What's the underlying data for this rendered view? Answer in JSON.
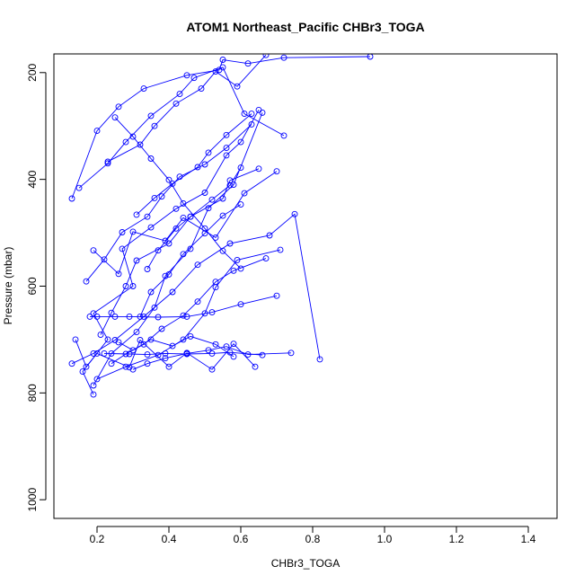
{
  "chart_data": {
    "type": "line",
    "title": "ATOM1 Northeast_Pacific CHBr3_TOGA",
    "xlabel": "CHBr3_TOGA",
    "ylabel": "Pressure (mbar)",
    "xlim": [
      0.08,
      1.48
    ],
    "ylim": [
      1035,
      165
    ],
    "y_reversed": true,
    "xticks": [
      0.2,
      0.4,
      0.6,
      0.8,
      1.0,
      1.2,
      1.4
    ],
    "xtick_labels": [
      "0.2",
      "0.4",
      "0.6",
      "0.8",
      "1.0",
      "1.2",
      "1.4"
    ],
    "yticks": [
      200,
      400,
      600,
      800,
      1000
    ],
    "ytick_labels": [
      "200",
      "400",
      "600",
      "800",
      "1000"
    ],
    "grid": false,
    "line_color": "#0000ff",
    "marker": "open-circle",
    "series": [
      {
        "x": [
          0.13,
          0.2,
          0.26,
          0.33,
          0.45,
          0.54,
          0.55,
          0.62,
          0.72,
          0.96
        ],
        "y": [
          436,
          309,
          264,
          230,
          205,
          195,
          176,
          183,
          172,
          170
        ]
      },
      {
        "x": [
          0.19,
          0.16,
          0.23,
          0.19,
          0.3,
          0.27,
          0.35,
          0.42,
          0.5,
          0.56,
          0.6,
          0.65
        ],
        "y": [
          803,
          760,
          700,
          651,
          600,
          530,
          490,
          455,
          425,
          355,
          330,
          270
        ]
      },
      {
        "x": [
          0.13,
          0.19,
          0.25,
          0.33,
          0.41,
          0.48,
          0.57,
          0.68,
          0.75,
          0.82
        ],
        "y": [
          745,
          726,
          701,
          657,
          611,
          560,
          520,
          505,
          465,
          737
        ]
      },
      {
        "x": [
          0.2,
          0.28,
          0.37,
          0.44,
          0.5,
          0.53,
          0.59,
          0.71
        ],
        "y": [
          774,
          751,
          729,
          700,
          651,
          602,
          551,
          532
        ]
      },
      {
        "x": [
          0.19,
          0.24,
          0.31,
          0.36,
          0.39,
          0.46,
          0.51,
          0.58,
          0.66
        ],
        "y": [
          786,
          726,
          686,
          640,
          581,
          530,
          454,
          410,
          275
        ]
      },
      {
        "x": [
          0.15,
          0.23,
          0.28,
          0.35,
          0.43,
          0.47,
          0.55,
          0.61,
          0.72
        ],
        "y": [
          416,
          370,
          330,
          281,
          240,
          210,
          190,
          277,
          318
        ]
      },
      {
        "x": [
          0.14,
          0.17,
          0.2,
          0.29,
          0.32,
          0.4,
          0.45,
          0.52,
          0.58,
          0.64
        ],
        "y": [
          700,
          751,
          726,
          752,
          701,
          751,
          725,
          756,
          708,
          751
        ]
      },
      {
        "x": [
          0.17,
          0.22,
          0.27,
          0.34,
          0.38,
          0.43,
          0.5,
          0.56,
          0.63
        ],
        "y": [
          591,
          550,
          499,
          470,
          432,
          395,
          372,
          341,
          297
        ]
      },
      {
        "x": [
          0.18,
          0.2,
          0.25,
          0.29,
          0.37,
          0.45,
          0.52,
          0.6,
          0.7
        ],
        "y": [
          657,
          657,
          657,
          657,
          658,
          657,
          649,
          634,
          618
        ]
      },
      {
        "x": [
          0.19,
          0.26,
          0.3,
          0.39,
          0.44,
          0.53,
          0.61,
          0.7
        ],
        "y": [
          533,
          577,
          498,
          515,
          472,
          509,
          426,
          385
        ]
      },
      {
        "x": [
          0.21,
          0.24,
          0.28,
          0.31,
          0.4,
          0.46,
          0.55,
          0.57,
          0.65
        ],
        "y": [
          691,
          650,
          600,
          552,
          520,
          470,
          436,
          402,
          380
        ]
      },
      {
        "x": [
          0.24,
          0.28,
          0.33,
          0.38,
          0.44,
          0.48,
          0.53,
          0.58,
          0.67
        ],
        "y": [
          745,
          727,
          709,
          680,
          655,
          629,
          592,
          571,
          548
        ]
      },
      {
        "x": [
          0.25,
          0.3,
          0.35,
          0.4,
          0.44,
          0.5,
          0.55,
          0.6
        ],
        "y": [
          284,
          320,
          361,
          401,
          445,
          492,
          534,
          567
        ]
      },
      {
        "x": [
          0.22,
          0.29,
          0.34,
          0.39,
          0.45,
          0.52,
          0.57,
          0.66
        ],
        "y": [
          726,
          727,
          728,
          726,
          727,
          726,
          724,
          729
        ]
      },
      {
        "x": [
          0.3,
          0.34,
          0.39,
          0.45,
          0.51,
          0.56,
          0.62,
          0.74
        ],
        "y": [
          756,
          745,
          735,
          726,
          720,
          713,
          728,
          725
        ]
      },
      {
        "x": [
          0.23,
          0.32,
          0.36,
          0.42,
          0.49,
          0.53,
          0.59,
          0.67
        ],
        "y": [
          367,
          335,
          300,
          258,
          230,
          198,
          226,
          167
        ]
      },
      {
        "x": [
          0.31,
          0.36,
          0.41,
          0.48,
          0.51,
          0.56,
          0.63
        ],
        "y": [
          466,
          435,
          408,
          377,
          350,
          317,
          277
        ]
      },
      {
        "x": [
          0.32,
          0.35,
          0.4,
          0.44,
          0.5,
          0.55,
          0.6
        ],
        "y": [
          657,
          611,
          578,
          540,
          501,
          468,
          447
        ]
      },
      {
        "x": [
          0.26,
          0.3,
          0.35,
          0.41,
          0.46,
          0.53,
          0.58
        ],
        "y": [
          705,
          720,
          700,
          712,
          694,
          709,
          732
        ]
      },
      {
        "x": [
          0.34,
          0.37,
          0.42,
          0.46,
          0.52,
          0.57,
          0.6
        ],
        "y": [
          568,
          533,
          492,
          470,
          438,
          411,
          378
        ]
      }
    ]
  }
}
